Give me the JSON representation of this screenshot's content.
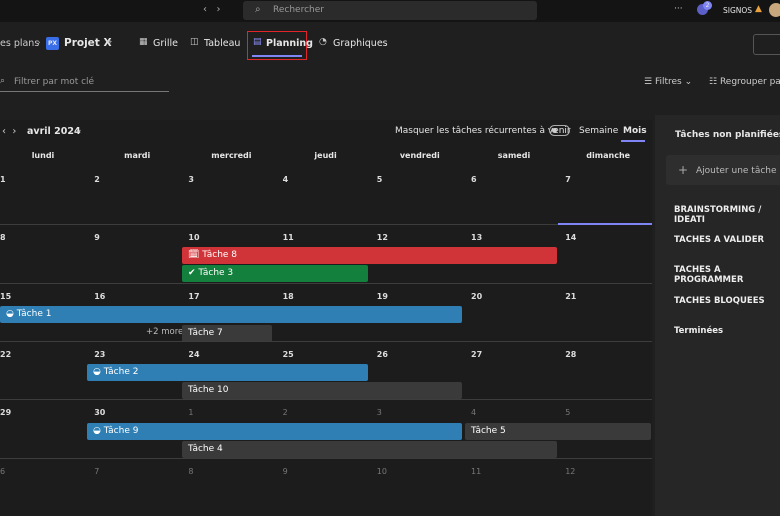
{
  "topbar": {
    "search": "Rechercher",
    "more": "···",
    "badge": "2",
    "user": "SIGNOS"
  },
  "breadcrumb": {
    "parent": "es plans",
    "icon": "PX",
    "project": "Projet X"
  },
  "tabs": [
    "Grille",
    "Tableau",
    "Planning",
    "Graphiques"
  ],
  "toolbar": {
    "filter_placeholder": "Filtrer par mot clé",
    "filters": "Filtres",
    "group": "Regrouper pa"
  },
  "calendar": {
    "month": "avril 2024",
    "toggle_label": "Masquer les tâches récurrentes à venir",
    "views": [
      "Semaine",
      "Mois"
    ],
    "weekdays": [
      "lundi",
      "mardi",
      "mercredi",
      "jeudi",
      "vendredi",
      "samedi",
      "dimanche"
    ],
    "weeks": [
      [
        "1",
        "2",
        "3",
        "4",
        "5",
        "6",
        "7"
      ],
      [
        "8",
        "9",
        "10",
        "11",
        "12",
        "13",
        "14"
      ],
      [
        "15",
        "16",
        "17",
        "18",
        "19",
        "20",
        "21"
      ],
      [
        "22",
        "23",
        "24",
        "25",
        "26",
        "27",
        "28"
      ],
      [
        "29",
        "30",
        "1",
        "2",
        "3",
        "4",
        "5"
      ],
      [
        "6",
        "7",
        "8",
        "9",
        "10",
        "11",
        "12"
      ]
    ],
    "tasks": [
      "Tâche 8",
      "Tâche 3",
      "Tâche 1",
      "Tâche 7",
      "Tâche 2",
      "Tâche 10",
      "Tâche 9",
      "Tâche 5",
      "Tâche 4"
    ],
    "more": "+2 more"
  },
  "sidebar": {
    "title": "Tâches non planifiées",
    "add": "Ajouter une tâche",
    "buckets": [
      "BRAINSTORMING / IDEATI",
      "TACHES A VALIDER",
      "TACHES A PROGRAMMER",
      "TACHES BLOQUEES",
      "Terminées"
    ]
  }
}
